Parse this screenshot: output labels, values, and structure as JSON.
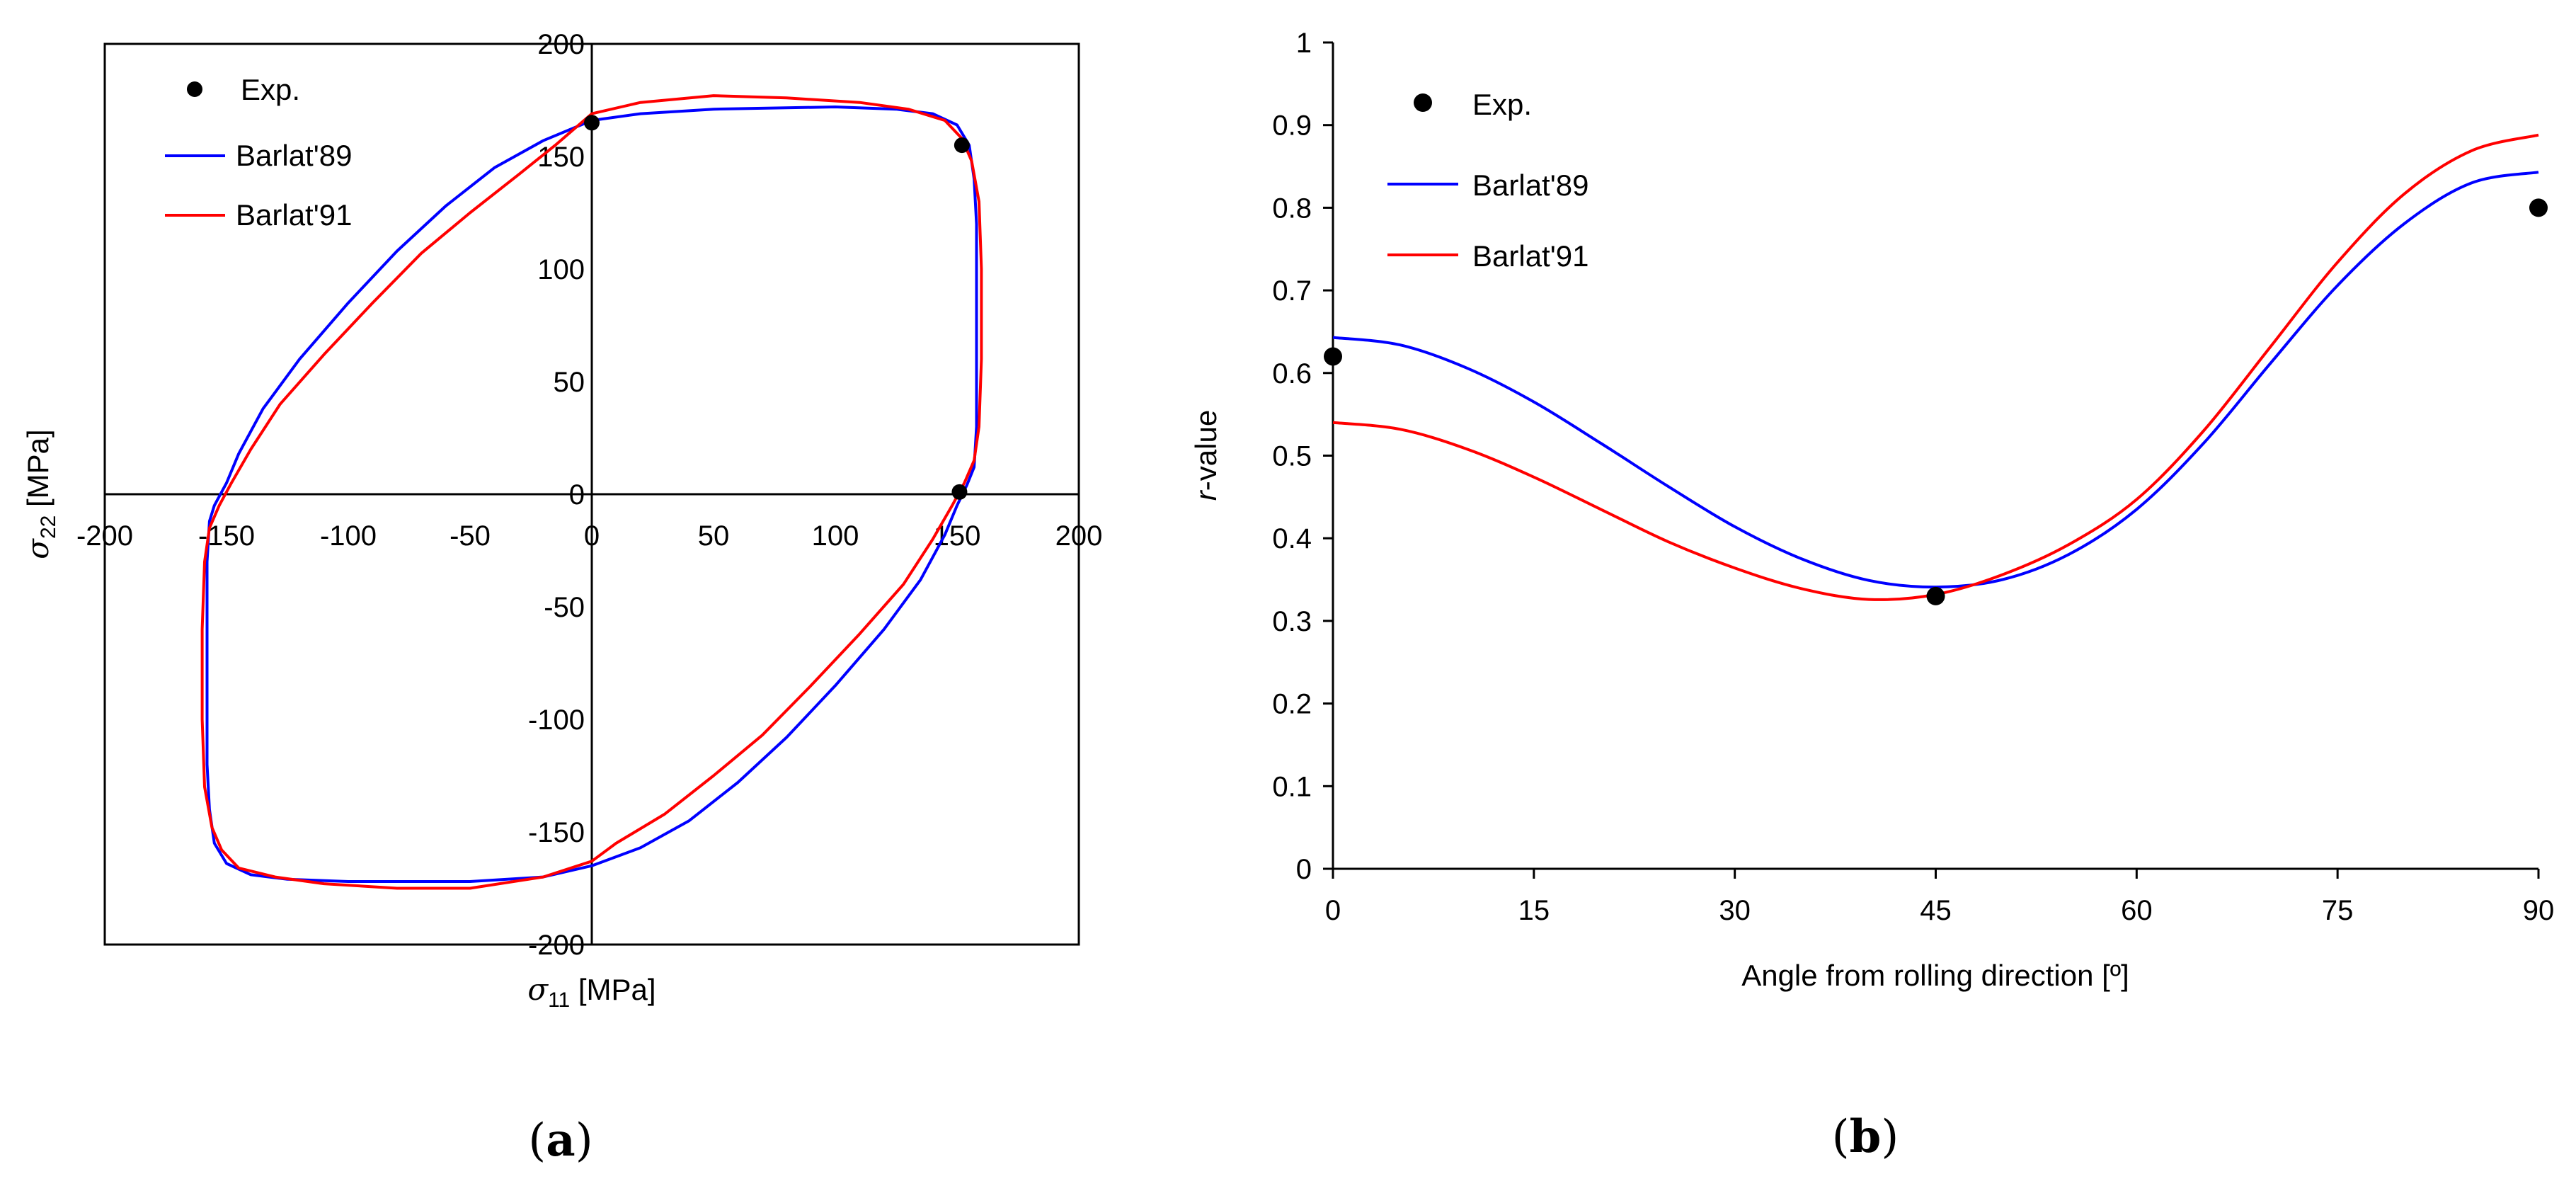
{
  "chart_data": [
    {
      "type": "line",
      "panel": "a",
      "caption": "(a)",
      "caption_letter": "a",
      "xlabel_symbol": "σ",
      "xlabel_sub": "11",
      "xlabel_unit": " [MPa]",
      "ylabel_symbol": "σ",
      "ylabel_sub": "22",
      "ylabel_unit": " [MPa]",
      "xlim": [
        -200,
        200
      ],
      "ylim": [
        -200,
        200
      ],
      "xticks": [
        -200,
        -150,
        -100,
        -50,
        0,
        50,
        100,
        150,
        200
      ],
      "yticks": [
        -200,
        -150,
        -100,
        -50,
        0,
        50,
        100,
        150,
        200
      ],
      "legend": [
        "Exp.",
        "Barlat'89",
        "Barlat'91"
      ],
      "series": [
        {
          "name": "Exp.",
          "kind": "points",
          "color": "#000000",
          "points": [
            [
              0,
              165
            ],
            [
              152,
              155
            ],
            [
              151,
              1
            ]
          ]
        },
        {
          "name": "Barlat'89",
          "kind": "line",
          "color": "#0000ff",
          "points": [
            [
              0,
              166
            ],
            [
              20,
              169
            ],
            [
              50,
              171
            ],
            [
              100,
              172
            ],
            [
              125,
              171
            ],
            [
              140,
              169
            ],
            [
              150,
              164
            ],
            [
              155,
              155
            ],
            [
              157,
              140
            ],
            [
              158,
              120
            ],
            [
              158,
              80
            ],
            [
              158,
              30
            ],
            [
              157,
              12
            ],
            [
              154,
              4
            ],
            [
              150,
              -5
            ],
            [
              145,
              -18
            ],
            [
              135,
              -38
            ],
            [
              120,
              -60
            ],
            [
              100,
              -85
            ],
            [
              80,
              -108
            ],
            [
              60,
              -128
            ],
            [
              40,
              -145
            ],
            [
              20,
              -157
            ],
            [
              0,
              -165
            ],
            [
              -20,
              -170
            ],
            [
              -50,
              -172
            ],
            [
              -100,
              -172
            ],
            [
              -125,
              -171
            ],
            [
              -140,
              -169
            ],
            [
              -150,
              -164
            ],
            [
              -155,
              -155
            ],
            [
              -157,
              -140
            ],
            [
              -158,
              -120
            ],
            [
              -158,
              -80
            ],
            [
              -158,
              -30
            ],
            [
              -157,
              -12
            ],
            [
              -155,
              -5
            ],
            [
              -150,
              5
            ],
            [
              -145,
              18
            ],
            [
              -135,
              38
            ],
            [
              -120,
              60
            ],
            [
              -100,
              85
            ],
            [
              -80,
              108
            ],
            [
              -60,
              128
            ],
            [
              -40,
              145
            ],
            [
              -20,
              157
            ],
            [
              0,
              166
            ]
          ]
        },
        {
          "name": "Barlat'91",
          "kind": "line",
          "color": "#ff0000",
          "points": [
            [
              0,
              169
            ],
            [
              20,
              174
            ],
            [
              50,
              177
            ],
            [
              80,
              176
            ],
            [
              110,
              174
            ],
            [
              130,
              171
            ],
            [
              145,
              166
            ],
            [
              152,
              158
            ],
            [
              156,
              148
            ],
            [
              159,
              130
            ],
            [
              160,
              100
            ],
            [
              160,
              60
            ],
            [
              159,
              30
            ],
            [
              157,
              15
            ],
            [
              153,
              5
            ],
            [
              148,
              -5
            ],
            [
              140,
              -20
            ],
            [
              128,
              -40
            ],
            [
              110,
              -62
            ],
            [
              90,
              -85
            ],
            [
              70,
              -107
            ],
            [
              50,
              -125
            ],
            [
              30,
              -142
            ],
            [
              10,
              -155
            ],
            [
              0,
              -163
            ],
            [
              -20,
              -170
            ],
            [
              -50,
              -175
            ],
            [
              -80,
              -175
            ],
            [
              -110,
              -173
            ],
            [
              -130,
              -170
            ],
            [
              -145,
              -166
            ],
            [
              -152,
              -158
            ],
            [
              -156,
              -148
            ],
            [
              -159,
              -130
            ],
            [
              -160,
              -100
            ],
            [
              -160,
              -60
            ],
            [
              -159,
              -30
            ],
            [
              -157,
              -15
            ],
            [
              -153,
              -5
            ],
            [
              -148,
              5
            ],
            [
              -140,
              20
            ],
            [
              -128,
              40
            ],
            [
              -110,
              62
            ],
            [
              -90,
              85
            ],
            [
              -70,
              107
            ],
            [
              -50,
              125
            ],
            [
              -30,
              142
            ],
            [
              -15,
              155
            ],
            [
              0,
              169
            ]
          ]
        }
      ]
    },
    {
      "type": "line",
      "panel": "b",
      "caption": "(b)",
      "caption_letter": "b",
      "xlabel": "Angle from rolling direction [º]",
      "ylabel_italic": "r",
      "ylabel_rest": "-value",
      "xlim": [
        0,
        90
      ],
      "ylim": [
        0,
        1
      ],
      "xticks": [
        0,
        15,
        30,
        45,
        60,
        75,
        90
      ],
      "yticks": [
        0,
        0.1,
        0.2,
        0.3,
        0.4,
        0.5,
        0.6,
        0.7,
        0.8,
        0.9,
        1
      ],
      "legend": [
        "Exp.",
        "Barlat'89",
        "Barlat'91"
      ],
      "series": [
        {
          "name": "Exp.",
          "kind": "points",
          "color": "#000000",
          "points": [
            [
              0,
              0.62
            ],
            [
              45,
              0.33
            ],
            [
              90,
              0.8
            ]
          ]
        },
        {
          "name": "Barlat'89",
          "kind": "line",
          "color": "#0000ff",
          "points": [
            [
              0,
              0.643
            ],
            [
              5,
              0.634
            ],
            [
              10,
              0.606
            ],
            [
              15,
              0.565
            ],
            [
              20,
              0.515
            ],
            [
              25,
              0.463
            ],
            [
              30,
              0.414
            ],
            [
              35,
              0.375
            ],
            [
              40,
              0.349
            ],
            [
              45,
              0.341
            ],
            [
              50,
              0.35
            ],
            [
              55,
              0.381
            ],
            [
              60,
              0.435
            ],
            [
              65,
              0.515
            ],
            [
              70,
              0.612
            ],
            [
              75,
              0.706
            ],
            [
              80,
              0.781
            ],
            [
              85,
              0.83
            ],
            [
              90,
              0.843
            ]
          ]
        },
        {
          "name": "Barlat'91",
          "kind": "line",
          "color": "#ff0000",
          "points": [
            [
              0,
              0.54
            ],
            [
              5,
              0.532
            ],
            [
              10,
              0.508
            ],
            [
              15,
              0.474
            ],
            [
              20,
              0.435
            ],
            [
              25,
              0.396
            ],
            [
              30,
              0.364
            ],
            [
              35,
              0.339
            ],
            [
              40,
              0.326
            ],
            [
              45,
              0.332
            ],
            [
              50,
              0.356
            ],
            [
              55,
              0.393
            ],
            [
              60,
              0.447
            ],
            [
              65,
              0.53
            ],
            [
              70,
              0.632
            ],
            [
              75,
              0.734
            ],
            [
              80,
              0.817
            ],
            [
              85,
              0.869
            ],
            [
              90,
              0.888
            ]
          ]
        }
      ]
    }
  ]
}
